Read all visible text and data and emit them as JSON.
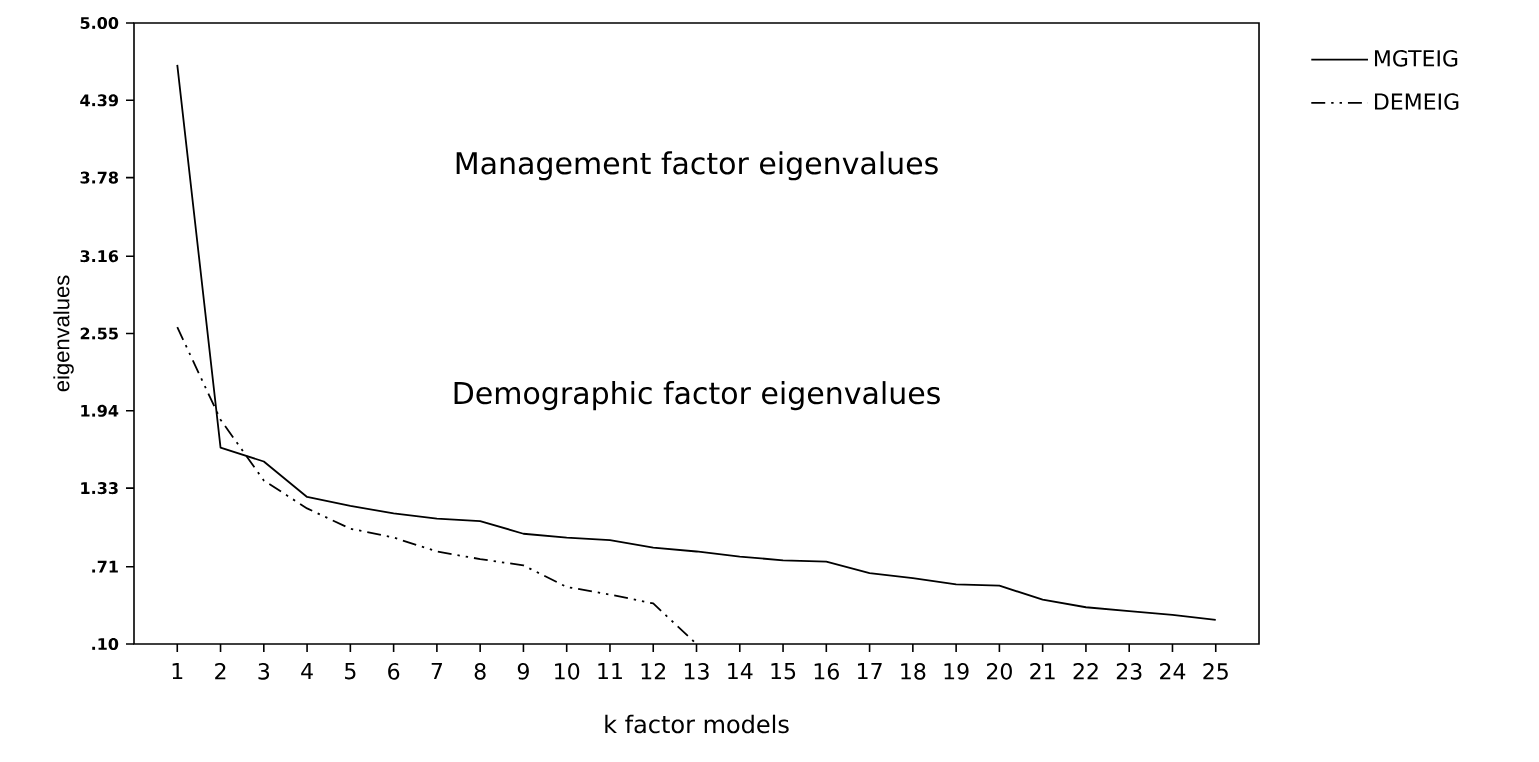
{
  "chart_data": {
    "type": "line",
    "xlabel": "k factor models",
    "ylabel": "eigenvalues",
    "x": [
      1,
      2,
      3,
      4,
      5,
      6,
      7,
      8,
      9,
      10,
      11,
      12,
      13,
      14,
      15,
      16,
      17,
      18,
      19,
      20,
      21,
      22,
      23,
      24,
      25
    ],
    "series": [
      {
        "name": "MGTEIG",
        "color": "#000000",
        "line_style": "solid",
        "values": [
          4.67,
          1.65,
          1.54,
          1.26,
          1.19,
          1.13,
          1.09,
          1.07,
          0.97,
          0.94,
          0.92,
          0.86,
          0.83,
          0.79,
          0.76,
          0.75,
          0.66,
          0.62,
          0.57,
          0.56,
          0.45,
          0.39,
          0.36,
          0.33,
          0.29
        ]
      },
      {
        "name": "DEMEIG",
        "color": "#000000",
        "line_style": "dashed",
        "values": [
          2.6,
          1.87,
          1.39,
          1.17,
          1.01,
          0.94,
          0.83,
          0.77,
          0.72,
          0.55,
          0.49,
          0.42,
          0.1,
          null,
          null,
          null,
          null,
          null,
          null,
          null,
          null,
          null,
          null,
          null,
          null
        ]
      }
    ],
    "xlim": [
      0,
      26
    ],
    "xticks": [
      1,
      2,
      3,
      4,
      5,
      6,
      7,
      8,
      9,
      10,
      11,
      12,
      13,
      14,
      15,
      16,
      17,
      18,
      19,
      20,
      21,
      22,
      23,
      24,
      25
    ],
    "ylim": [
      0.1,
      5
    ],
    "yticks": [
      {
        "value": 0.1,
        "label": ".10"
      },
      {
        "value": 0.71,
        "label": ".71"
      },
      {
        "value": 1.33,
        "label": "1.33"
      },
      {
        "value": 1.94,
        "label": "1.94"
      },
      {
        "value": 2.55,
        "label": "2.55"
      },
      {
        "value": 3.16,
        "label": "3.16"
      },
      {
        "value": 3.78,
        "label": "3.78"
      },
      {
        "value": 4.39,
        "label": "4.39"
      },
      {
        "value": 5,
        "label": "5.00"
      }
    ],
    "legend": "top right",
    "grid": false,
    "marker": "none",
    "annotations": [
      "Management factor eigenvalues",
      "Demographic factor eigenvalues"
    ]
  }
}
